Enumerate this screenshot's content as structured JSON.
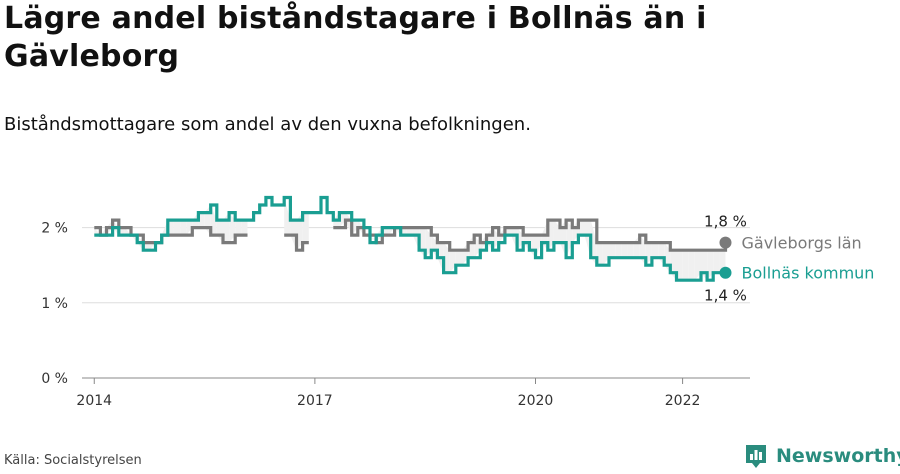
{
  "header": {
    "title": "Lägre andel biståndstagare i Bollnäs än i Gävleborg",
    "subtitle": "Biståndsmottagare som andel av den vuxna befolkningen."
  },
  "footer": {
    "source": "Källa: Socialstyrelsen",
    "brand": "Newsworthy"
  },
  "colors": {
    "gavleborg": "#7a7a7a",
    "bollnas": "#1a9e92",
    "brand": "#2a8c7e"
  },
  "chart_data": {
    "type": "line",
    "x_range": [
      "2013-11",
      "2022-12"
    ],
    "ylim": [
      0,
      2.5
    ],
    "y_ticks": [
      {
        "value": 0,
        "label": "0 %"
      },
      {
        "value": 1,
        "label": "1 %"
      },
      {
        "value": 2,
        "label": "2 %"
      }
    ],
    "x_ticks": [
      {
        "value": "2014-01",
        "label": "2014"
      },
      {
        "value": "2017-01",
        "label": "2017"
      },
      {
        "value": "2020-01",
        "label": "2020"
      },
      {
        "value": "2022-01",
        "label": "2022"
      }
    ],
    "grid": true,
    "legend": "line-end labels (right)",
    "series": [
      {
        "name": "Gävleborgs län",
        "color_key": "gavleborg",
        "start": "2014-01",
        "end_label": "1,8 %",
        "values": [
          2.0,
          1.9,
          2.0,
          2.1,
          2.0,
          2.0,
          1.9,
          1.9,
          1.8,
          1.8,
          1.8,
          1.9,
          1.9,
          1.9,
          1.9,
          1.9,
          2.0,
          2.0,
          2.0,
          1.9,
          1.9,
          1.8,
          1.8,
          1.9,
          1.9,
          1.9,
          null,
          null,
          null,
          null,
          null,
          1.9,
          1.9,
          1.7,
          1.8,
          1.8,
          null,
          null,
          null,
          2.0,
          2.0,
          2.1,
          1.9,
          2.0,
          1.9,
          1.9,
          1.8,
          1.9,
          1.9,
          2.0,
          2.0,
          2.0,
          2.0,
          2.0,
          2.0,
          1.9,
          1.8,
          1.8,
          1.7,
          1.7,
          1.7,
          1.8,
          1.9,
          1.8,
          1.9,
          2.0,
          1.9,
          2.0,
          2.0,
          2.0,
          1.9,
          1.9,
          1.9,
          1.9,
          2.1,
          2.1,
          2.0,
          2.1,
          2.0,
          2.1,
          2.1,
          2.1,
          1.8,
          1.8,
          1.8,
          1.8,
          1.8,
          1.8,
          1.8,
          1.9,
          1.8,
          1.8,
          1.8,
          1.8,
          1.7,
          1.7,
          1.7,
          1.7,
          1.7,
          1.7,
          1.7,
          1.7,
          1.7,
          1.8
        ]
      },
      {
        "name": "Bollnäs kommun",
        "color_key": "bollnas",
        "start": "2014-01",
        "end_label": "1,4 %",
        "values": [
          1.9,
          1.9,
          1.9,
          2.0,
          1.9,
          1.9,
          1.9,
          1.8,
          1.7,
          1.7,
          1.8,
          1.9,
          2.1,
          2.1,
          2.1,
          2.1,
          2.1,
          2.2,
          2.2,
          2.3,
          2.1,
          2.1,
          2.2,
          2.1,
          2.1,
          2.1,
          2.2,
          2.3,
          2.4,
          2.3,
          2.3,
          2.4,
          2.1,
          2.1,
          2.2,
          2.2,
          2.2,
          2.4,
          2.2,
          2.1,
          2.2,
          2.2,
          2.1,
          2.1,
          2.0,
          1.8,
          1.9,
          2.0,
          2.0,
          2.0,
          1.9,
          1.9,
          1.9,
          1.7,
          1.6,
          1.7,
          1.6,
          1.4,
          1.4,
          1.5,
          1.5,
          1.6,
          1.6,
          1.7,
          1.8,
          1.7,
          1.8,
          1.9,
          1.9,
          1.7,
          1.8,
          1.7,
          1.6,
          1.8,
          1.7,
          1.8,
          1.8,
          1.6,
          1.8,
          1.9,
          1.9,
          1.6,
          1.5,
          1.5,
          1.6,
          1.6,
          1.6,
          1.6,
          1.6,
          1.6,
          1.5,
          1.6,
          1.6,
          1.5,
          1.4,
          1.3,
          1.3,
          1.3,
          1.3,
          1.4,
          1.3,
          1.4,
          1.4,
          1.4
        ]
      }
    ]
  }
}
